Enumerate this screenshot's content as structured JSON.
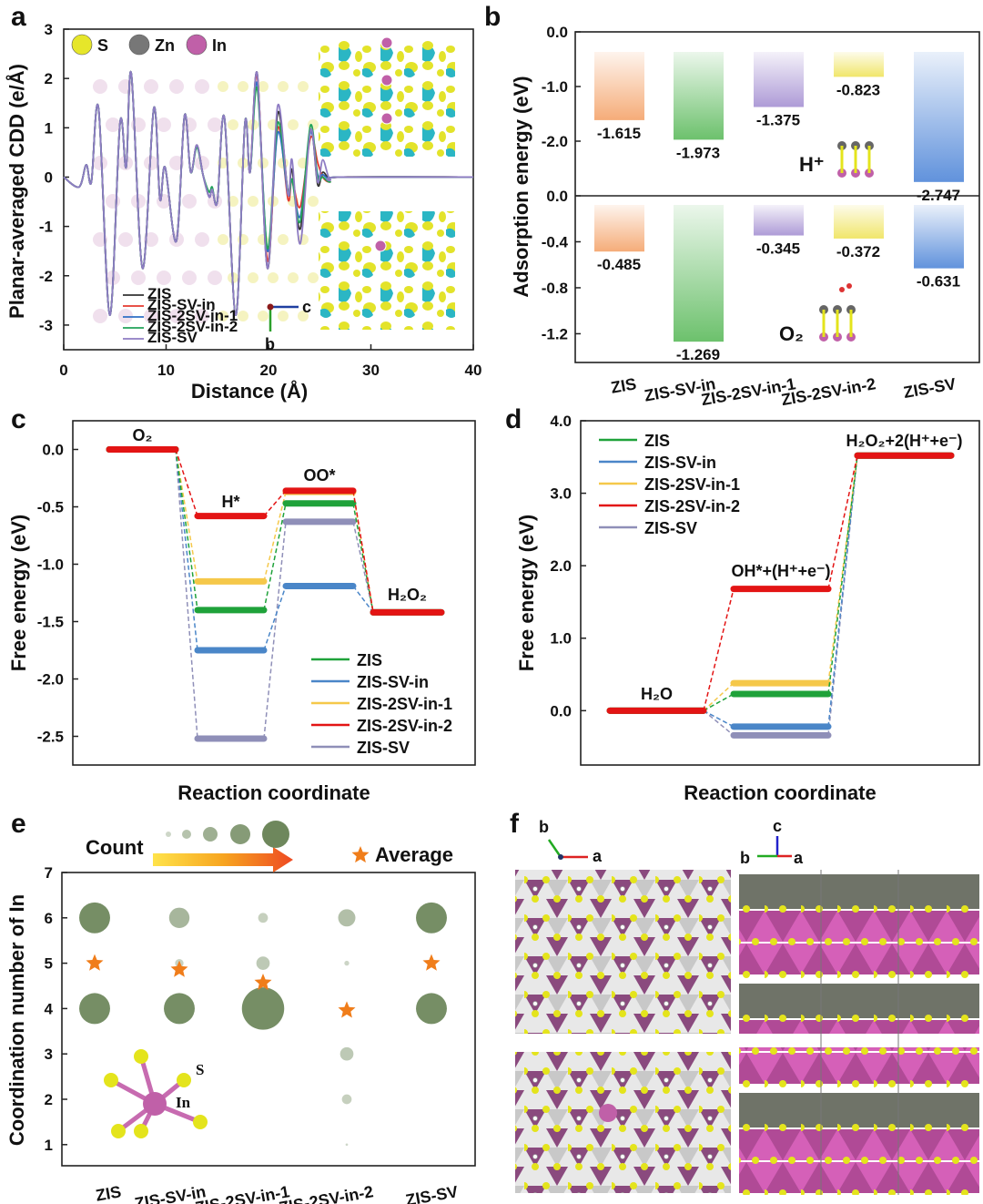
{
  "series_names": [
    "ZIS",
    "ZIS-SV-in",
    "ZIS-2SV-in-1",
    "ZIS-2SV-in-2",
    "ZIS-SV"
  ],
  "chart_data": [
    {
      "panel": "a",
      "type": "line",
      "xlabel": "Distance (Å)",
      "ylabel": "Planar-averaged CDD (e/Å)",
      "xlim": [
        0,
        40
      ],
      "ylim": [
        -3.5,
        3
      ],
      "xticks": [
        "0",
        "10",
        "20",
        "30",
        "40"
      ],
      "yticks": [
        "3",
        "2",
        "1",
        "0",
        "-1",
        "-2",
        "-3"
      ],
      "element_legend": [
        "S",
        "Zn",
        "In"
      ],
      "element_colors": [
        "#e6e62a",
        "#777777",
        "#c060a8"
      ],
      "axis_labels": [
        "c",
        "b"
      ],
      "series": [
        {
          "name": "ZIS",
          "color": "#333333",
          "points": [
            [
              0,
              0
            ],
            [
              1.5,
              -0.2
            ],
            [
              2.2,
              0.25
            ],
            [
              2.7,
              -0.1
            ],
            [
              3.4,
              1.4
            ],
            [
              4.5,
              -2.8
            ],
            [
              5.5,
              1.1
            ],
            [
              6.1,
              0.2
            ],
            [
              6.6,
              2.1
            ],
            [
              7.7,
              -1.85
            ],
            [
              8.8,
              1.4
            ],
            [
              9.4,
              -0.45
            ],
            [
              9.9,
              0.2
            ],
            [
              11,
              -1.3
            ],
            [
              11.8,
              1.25
            ],
            [
              12.4,
              0.1
            ],
            [
              13,
              0.65
            ],
            [
              13.6,
              0.05
            ],
            [
              14.2,
              -0.4
            ],
            [
              14.5,
              -0.25
            ],
            [
              15,
              -0.5
            ],
            [
              15.7,
              1.2
            ],
            [
              16.8,
              -2.8
            ],
            [
              17.7,
              1.1
            ],
            [
              18.2,
              0.1
            ],
            [
              18.9,
              2.1
            ],
            [
              19.9,
              -1.85
            ],
            [
              20.9,
              1.3
            ],
            [
              21.9,
              -0.3
            ],
            [
              22.3,
              0.15
            ],
            [
              23.1,
              -1.05
            ],
            [
              24.1,
              0.95
            ],
            [
              24.8,
              -0.15
            ],
            [
              25.3,
              0.1
            ],
            [
              26,
              -0.05
            ],
            [
              27,
              0
            ],
            [
              40,
              0
            ]
          ]
        },
        {
          "name": "ZIS-SV-in",
          "color": "#e53a2f",
          "points": [
            [
              0,
              0
            ],
            [
              1.5,
              -0.2
            ],
            [
              2.2,
              0.25
            ],
            [
              2.7,
              -0.1
            ],
            [
              3.4,
              1.4
            ],
            [
              4.5,
              -2.8
            ],
            [
              5.5,
              1.1
            ],
            [
              6.1,
              0.2
            ],
            [
              6.6,
              2.1
            ],
            [
              7.7,
              -1.85
            ],
            [
              8.8,
              1.4
            ],
            [
              9.4,
              -0.45
            ],
            [
              9.9,
              0.2
            ],
            [
              11,
              -1.3
            ],
            [
              11.8,
              1.25
            ],
            [
              12.4,
              0.1
            ],
            [
              13,
              0.65
            ],
            [
              13.6,
              0.05
            ],
            [
              14.2,
              -0.4
            ],
            [
              14.5,
              -0.25
            ],
            [
              15,
              -0.5
            ],
            [
              15.7,
              1.2
            ],
            [
              16.8,
              -2.8
            ],
            [
              17.7,
              1.1
            ],
            [
              18.2,
              0.1
            ],
            [
              18.9,
              2.05
            ],
            [
              19.9,
              -1.7
            ],
            [
              20.9,
              1.0
            ],
            [
              21.9,
              -0.45
            ],
            [
              22.3,
              -0.05
            ],
            [
              23.1,
              -0.6
            ],
            [
              24.1,
              0.8
            ],
            [
              24.8,
              0.3
            ],
            [
              25.3,
              0.0
            ],
            [
              26,
              -0.1
            ],
            [
              27,
              0
            ],
            [
              40,
              0
            ]
          ]
        },
        {
          "name": "ZIS-2SV-in-1",
          "color": "#2f6fc4",
          "points": [
            [
              0,
              0
            ],
            [
              1.5,
              -0.2
            ],
            [
              2.2,
              0.25
            ],
            [
              2.7,
              -0.1
            ],
            [
              3.4,
              1.4
            ],
            [
              4.5,
              -2.8
            ],
            [
              5.5,
              1.1
            ],
            [
              6.1,
              0.2
            ],
            [
              6.6,
              2.1
            ],
            [
              7.7,
              -1.85
            ],
            [
              8.8,
              1.4
            ],
            [
              9.4,
              -0.45
            ],
            [
              9.9,
              0.2
            ],
            [
              11,
              -1.3
            ],
            [
              11.8,
              1.25
            ],
            [
              12.4,
              0.1
            ],
            [
              13,
              0.65
            ],
            [
              13.6,
              0.05
            ],
            [
              14.2,
              -0.4
            ],
            [
              14.5,
              -0.25
            ],
            [
              15,
              -0.5
            ],
            [
              15.7,
              1.2
            ],
            [
              16.8,
              -2.8
            ],
            [
              17.7,
              1.1
            ],
            [
              18.2,
              0.1
            ],
            [
              18.9,
              1.9
            ],
            [
              19.9,
              -1.5
            ],
            [
              20.9,
              0.9
            ],
            [
              21.9,
              -0.35
            ],
            [
              22.3,
              -0.05
            ],
            [
              23.1,
              -0.8
            ],
            [
              24.1,
              0.9
            ],
            [
              24.8,
              0.05
            ],
            [
              25.3,
              0.05
            ],
            [
              26,
              -0.05
            ],
            [
              27,
              0
            ],
            [
              40,
              0
            ]
          ]
        },
        {
          "name": "ZIS-2SV-in-2",
          "color": "#22a35a",
          "points": [
            [
              0,
              0
            ],
            [
              1.5,
              -0.2
            ],
            [
              2.2,
              0.25
            ],
            [
              2.7,
              -0.1
            ],
            [
              3.4,
              1.4
            ],
            [
              4.5,
              -2.8
            ],
            [
              5.5,
              1.1
            ],
            [
              6.1,
              0.2
            ],
            [
              6.6,
              2.1
            ],
            [
              7.7,
              -1.85
            ],
            [
              8.8,
              1.4
            ],
            [
              9.4,
              -0.45
            ],
            [
              9.9,
              0.2
            ],
            [
              11,
              -1.3
            ],
            [
              11.8,
              1.25
            ],
            [
              12.4,
              0.1
            ],
            [
              13,
              0.6
            ],
            [
              13.6,
              0.05
            ],
            [
              14.2,
              -0.3
            ],
            [
              14.5,
              -0.2
            ],
            [
              15,
              -0.5
            ],
            [
              15.7,
              1.2
            ],
            [
              16.8,
              -2.8
            ],
            [
              17.7,
              1.1
            ],
            [
              18.2,
              0.1
            ],
            [
              18.9,
              1.8
            ],
            [
              19.9,
              -1.45
            ],
            [
              20.9,
              1.1
            ],
            [
              21.9,
              -0.3
            ],
            [
              22.3,
              -0.05
            ],
            [
              23.1,
              -0.9
            ],
            [
              24.1,
              1.05
            ],
            [
              24.8,
              0.0
            ],
            [
              25.3,
              0.0
            ],
            [
              26,
              -0.1
            ],
            [
              27,
              0
            ],
            [
              40,
              0
            ]
          ]
        },
        {
          "name": "ZIS-SV",
          "color": "#8e7cc3",
          "points": [
            [
              0,
              0
            ],
            [
              1.5,
              -0.2
            ],
            [
              2.2,
              0.25
            ],
            [
              2.7,
              -0.1
            ],
            [
              3.4,
              1.4
            ],
            [
              4.5,
              -2.8
            ],
            [
              5.5,
              1.1
            ],
            [
              6.1,
              0.2
            ],
            [
              6.6,
              2.1
            ],
            [
              7.7,
              -1.85
            ],
            [
              8.8,
              1.4
            ],
            [
              9.4,
              -0.45
            ],
            [
              9.9,
              0.2
            ],
            [
              11,
              -1.3
            ],
            [
              11.8,
              1.25
            ],
            [
              12.4,
              0.1
            ],
            [
              13,
              0.65
            ],
            [
              13.6,
              0.05
            ],
            [
              14.2,
              -0.4
            ],
            [
              14.5,
              -0.25
            ],
            [
              15,
              -0.5
            ],
            [
              15.7,
              1.2
            ],
            [
              16.8,
              -2.8
            ],
            [
              17.7,
              1.1
            ],
            [
              18.2,
              0.1
            ],
            [
              18.9,
              2.1
            ],
            [
              19.9,
              -1.85
            ],
            [
              20.9,
              1.45
            ],
            [
              21.9,
              -0.35
            ],
            [
              22.3,
              0.35
            ],
            [
              23.1,
              -1.35
            ],
            [
              24.1,
              0.95
            ],
            [
              24.8,
              -0.1
            ],
            [
              25.3,
              0.35
            ],
            [
              26,
              -0.05
            ],
            [
              27,
              0
            ],
            [
              40,
              0
            ]
          ]
        }
      ]
    },
    {
      "panel": "b",
      "type": "bar",
      "ylabel": "Adsorption energy (eV)",
      "categories": [
        "ZIS",
        "ZIS-SV-in",
        "ZIS-2SV-in-1",
        "ZIS-2SV-in-2",
        "ZIS-SV"
      ],
      "colors": [
        "#f4a36a",
        "#5cba5c",
        "#a590d2",
        "#efe35a",
        "#4f86d8"
      ],
      "subplots": [
        {
          "adsorbate": "H⁺",
          "ylim": [
            -3.0,
            0
          ],
          "yticks": [
            "0.0",
            "-1.0",
            "-2.0"
          ],
          "values": [
            -1.615,
            -1.973,
            -1.375,
            -0.823,
            -2.747
          ],
          "labels": [
            "-1.615",
            "-1.973",
            "-1.375",
            "-0.823",
            "-2.747"
          ]
        },
        {
          "adsorbate": "O₂",
          "ylim": [
            -1.45,
            0
          ],
          "yticks": [
            "0.0",
            "-0.4",
            "-0.8",
            "-1.2"
          ],
          "values": [
            -0.485,
            -1.269,
            -0.345,
            -0.372,
            -0.631
          ],
          "labels": [
            "-0.485",
            "-1.269",
            "-0.345",
            "-0.372",
            "-0.631"
          ]
        }
      ]
    },
    {
      "panel": "c",
      "type": "line",
      "xlabel": "Reaction coordinate",
      "ylabel": "Free energy (eV)",
      "ylim": [
        -2.75,
        0.25
      ],
      "yticks": [
        "0.0",
        "-0.5",
        "-1.0",
        "-1.5",
        "-2.0",
        "-2.5"
      ],
      "steps": [
        "O₂",
        "H*",
        "OO*",
        "H₂O₂"
      ],
      "series": [
        {
          "name": "ZIS",
          "color": "#1fa23a",
          "values": [
            0,
            -1.4,
            -0.47,
            -1.42
          ]
        },
        {
          "name": "ZIS-SV-in",
          "color": "#4a86c8",
          "values": [
            0,
            -1.75,
            -1.19,
            -1.42
          ]
        },
        {
          "name": "ZIS-2SV-in-1",
          "color": "#f5c84a",
          "values": [
            0,
            -1.15,
            -0.37,
            -1.42
          ]
        },
        {
          "name": "ZIS-2SV-in-2",
          "color": "#e31414",
          "values": [
            0,
            -0.58,
            -0.36,
            -1.42
          ]
        },
        {
          "name": "ZIS-SV",
          "color": "#8f8fb8",
          "values": [
            0,
            -2.52,
            -0.63,
            -1.42
          ]
        }
      ]
    },
    {
      "panel": "d",
      "type": "line",
      "xlabel": "Reaction coordinate",
      "ylabel": "Free energy (eV)",
      "ylim": [
        -0.75,
        4.0
      ],
      "yticks": [
        "4.0",
        "3.0",
        "2.0",
        "1.0",
        "0.0"
      ],
      "steps": [
        "H₂O",
        "OH*+(H⁺+e⁻)",
        "H₂O₂+2(H⁺+e⁻)"
      ],
      "series": [
        {
          "name": "ZIS",
          "color": "#1fa23a",
          "values": [
            0,
            0.23,
            3.52
          ]
        },
        {
          "name": "ZIS-SV-in",
          "color": "#4a86c8",
          "values": [
            0,
            -0.22,
            3.52
          ]
        },
        {
          "name": "ZIS-2SV-in-1",
          "color": "#f5c84a",
          "values": [
            0,
            0.38,
            3.52
          ]
        },
        {
          "name": "ZIS-2SV-in-2",
          "color": "#e31414",
          "values": [
            0,
            1.68,
            3.52
          ]
        },
        {
          "name": "ZIS-SV",
          "color": "#8f8fb8",
          "values": [
            0,
            -0.34,
            3.52
          ]
        }
      ]
    },
    {
      "panel": "e",
      "type": "scatter",
      "ylabel": "Coordination number of In",
      "ylim": [
        0.8,
        7
      ],
      "yticks": [
        "7",
        "6",
        "5",
        "4",
        "3",
        "2",
        "1"
      ],
      "categories": [
        "ZIS",
        "ZIS-SV-in",
        "ZIS-2SV-in-1",
        "ZIS-2SV-in-2",
        "ZIS-SV"
      ],
      "count_label": "Count",
      "average_label": "Average",
      "inset_labels": [
        "S",
        "In"
      ],
      "bubbles": [
        {
          "category": 0,
          "cn": 6,
          "count": 8
        },
        {
          "category": 0,
          "cn": 4,
          "count": 8
        },
        {
          "category": 1,
          "cn": 6,
          "count": 3.5
        },
        {
          "category": 1,
          "cn": 5,
          "count": 0.6
        },
        {
          "category": 1,
          "cn": 4,
          "count": 8
        },
        {
          "category": 2,
          "cn": 6,
          "count": 0.8
        },
        {
          "category": 2,
          "cn": 5,
          "count": 1.5
        },
        {
          "category": 2,
          "cn": 4,
          "count": 15
        },
        {
          "category": 3,
          "cn": 6,
          "count": 2.5
        },
        {
          "category": 3,
          "cn": 5,
          "count": 0.2
        },
        {
          "category": 3,
          "cn": 3,
          "count": 1.5
        },
        {
          "category": 3,
          "cn": 2,
          "count": 0.8
        },
        {
          "category": 3,
          "cn": 1,
          "count": 0.05
        },
        {
          "category": 4,
          "cn": 6,
          "count": 8
        },
        {
          "category": 4,
          "cn": 4,
          "count": 8
        }
      ],
      "averages": [
        5.0,
        4.86,
        4.57,
        3.96,
        5.0
      ]
    }
  ],
  "panel_f": {
    "axes_left": [
      "b",
      "a"
    ],
    "axes_right": [
      "c",
      "b",
      "a"
    ]
  },
  "panel_letters": [
    "a",
    "b",
    "c",
    "d",
    "e",
    "f"
  ]
}
